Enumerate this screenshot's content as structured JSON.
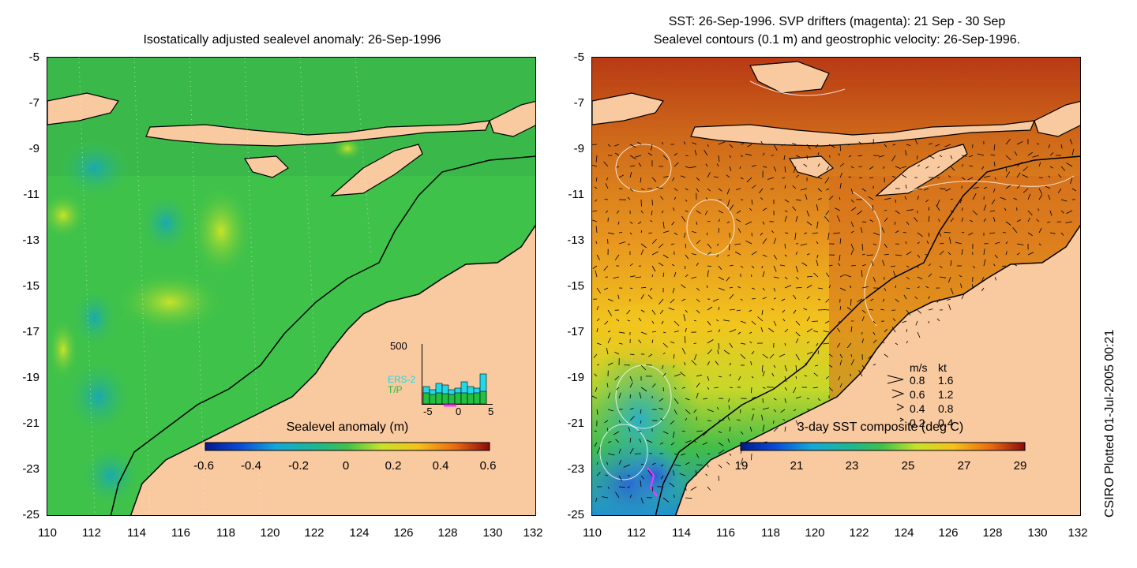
{
  "left_title": "Isostatically adjusted sealevel anomaly: 26-Sep-1996",
  "right_title_line1": "SST: 26-Sep-1996. SVP drifters (magenta): 21 Sep - 30 Sep",
  "right_title_line2": "Sealevel contours (0.1 m) and geostrophic velocity: 26-Sep-1996.",
  "y_ticks": [
    "-5",
    "-7",
    "-9",
    "-11",
    "-13",
    "-15",
    "-17",
    "-19",
    "-21",
    "-23",
    "-25"
  ],
  "x_ticks": [
    "110",
    "112",
    "114",
    "116",
    "118",
    "120",
    "122",
    "124",
    "126",
    "128",
    "130",
    "132"
  ],
  "left_colorbar": {
    "label": "Sealevel anomaly (m)",
    "ticks": [
      "-0.6",
      "-0.4",
      "-0.2",
      "0",
      "0.2",
      "0.4",
      "0.6"
    ]
  },
  "right_colorbar": {
    "label": "3-day SST composite (deg C)",
    "ticks": [
      "19",
      "21",
      "23",
      "25",
      "27",
      "29"
    ]
  },
  "histogram": {
    "ymax_label": "500",
    "series1": "ERS-2",
    "series2": "T/P",
    "x_left": "-5",
    "x_mid": "0",
    "x_right": "5"
  },
  "velocity_legend": {
    "header_ms": "m/s",
    "header_kt": "kt",
    "rows": [
      {
        "ms": "0.8",
        "kt": "1.6"
      },
      {
        "ms": "0.6",
        "kt": "1.2"
      },
      {
        "ms": "0.4",
        "kt": "0.8"
      },
      {
        "ms": "0.2",
        "kt": "0.4"
      }
    ]
  },
  "credit": "CSIRO Plotted 01-Jul-2005 00:21",
  "colors": {
    "land": "#f9c9a0",
    "left_ocean": "#3fc24a",
    "right_ocean": "#e08a20"
  }
}
